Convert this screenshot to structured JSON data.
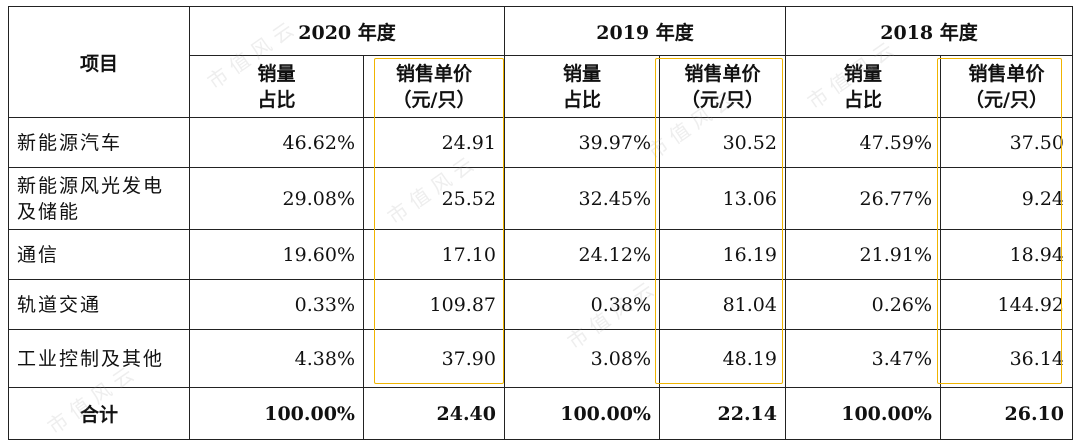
{
  "header": {
    "item_label": "项目",
    "years": [
      "2020 年度",
      "2019 年度",
      "2018 年度"
    ],
    "sub_share": [
      "销量",
      "占比"
    ],
    "sub_price": [
      "销售单价",
      "（元/只）"
    ]
  },
  "rows": [
    {
      "name": "新能源汽车",
      "values": [
        "46.62%",
        "24.91",
        "39.97%",
        "30.52",
        "47.59%",
        "37.50"
      ]
    },
    {
      "name": "新能源风光发电及储能",
      "values": [
        "29.08%",
        "25.52",
        "32.45%",
        "13.06",
        "26.77%",
        "9.24"
      ]
    },
    {
      "name": "通信",
      "values": [
        "19.60%",
        "17.10",
        "24.12%",
        "16.19",
        "21.91%",
        "18.94"
      ]
    },
    {
      "name": "轨道交通",
      "values": [
        "0.33%",
        "109.87",
        "0.38%",
        "81.04",
        "0.26%",
        "144.92"
      ]
    },
    {
      "name": "工业控制及其他",
      "values": [
        "4.38%",
        "37.90",
        "3.08%",
        "48.19",
        "3.47%",
        "36.14"
      ]
    }
  ],
  "total": {
    "name": "合计",
    "values": [
      "100.00%",
      "24.40",
      "100.00%",
      "22.14",
      "100.00%",
      "26.10"
    ]
  },
  "highlight_color": "#f0b400"
}
